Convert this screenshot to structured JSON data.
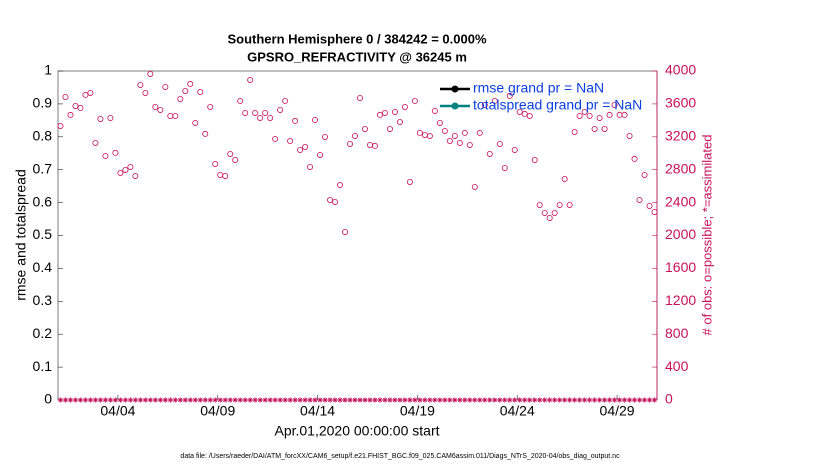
{
  "chart_data": {
    "type": "scatter",
    "title": "Southern Hemisphere 0 / 384242 = 0.000%",
    "subtitle": "GPSRO_REFRACTIVITY @ 36245 m",
    "x_label": "Apr.01,2020 00:00:00 start",
    "y_label": "rmse and totalspread",
    "y2_label": "# of obs: o=possible; *=assimilated",
    "footer": "data file: /Users/raeder/DAI/ATM_forcXX/CAM6_setup/f.e21.FHIST_BGC.f09_025.CAM6assim.011/Diags_NTrS_2020-04/obs_diag_output.nc",
    "legend": {
      "corner": "northeast",
      "entries": [
        {
          "label": "rmse grand pr = NaN",
          "color": "#000000"
        },
        {
          "label": "totalspread grand pr = NaN",
          "color": "#008080"
        }
      ]
    },
    "xlim": [
      1,
      31
    ],
    "xticks": [
      {
        "value": 4,
        "label": "04/04"
      },
      {
        "value": 9,
        "label": "04/09"
      },
      {
        "value": 14,
        "label": "04/14"
      },
      {
        "value": 19,
        "label": "04/19"
      },
      {
        "value": 24,
        "label": "04/24"
      },
      {
        "value": 29,
        "label": "04/29"
      }
    ],
    "ylim": [
      0,
      1
    ],
    "yticks": [
      0,
      0.1,
      0.2,
      0.3,
      0.4,
      0.5,
      0.6,
      0.7,
      0.8,
      0.9,
      1
    ],
    "y2lim": [
      0,
      4000
    ],
    "y2ticks": [
      0,
      400,
      800,
      1200,
      1600,
      2000,
      2400,
      2800,
      3200,
      3600,
      4000
    ],
    "x": [
      1.125,
      1.375,
      1.625,
      1.875,
      2.125,
      2.375,
      2.625,
      2.875,
      3.125,
      3.375,
      3.625,
      3.875,
      4.125,
      4.375,
      4.625,
      4.875,
      5.125,
      5.375,
      5.625,
      5.875,
      6.125,
      6.375,
      6.625,
      6.875,
      7.125,
      7.375,
      7.625,
      7.875,
      8.125,
      8.375,
      8.625,
      8.875,
      9.125,
      9.375,
      9.625,
      9.875,
      10.125,
      10.375,
      10.625,
      10.875,
      11.125,
      11.375,
      11.625,
      11.875,
      12.125,
      12.375,
      12.625,
      12.875,
      13.125,
      13.375,
      13.625,
      13.875,
      14.125,
      14.375,
      14.625,
      14.875,
      15.125,
      15.375,
      15.625,
      15.875,
      16.125,
      16.375,
      16.625,
      16.875,
      17.125,
      17.375,
      17.625,
      17.875,
      18.125,
      18.375,
      18.625,
      18.875,
      19.125,
      19.375,
      19.625,
      19.875,
      20.125,
      20.375,
      20.625,
      20.875,
      21.125,
      21.375,
      21.625,
      21.875,
      22.125,
      22.375,
      22.625,
      22.875,
      23.125,
      23.375,
      23.625,
      23.875,
      24.125,
      24.375,
      24.625,
      24.875,
      25.125,
      25.375,
      25.625,
      25.875,
      26.125,
      26.375,
      26.625,
      26.875,
      27.125,
      27.375,
      27.625,
      27.875,
      28.125,
      28.375,
      28.625,
      28.875,
      29.125,
      29.375,
      29.625,
      29.875,
      30.125,
      30.375,
      30.625,
      30.875
    ],
    "series": [
      {
        "marker": "o",
        "color": "#c8105a",
        "axis": "y2",
        "values": [
          3332,
          3684,
          3466,
          3575,
          3551,
          3709,
          3733,
          3125,
          3417,
          2967,
          3429,
          3004,
          2760,
          2797,
          2833,
          2724,
          3830,
          3733,
          3964,
          3563,
          3526,
          3806,
          3453,
          3453,
          3660,
          3757,
          3843,
          3368,
          3745,
          3235,
          3563,
          2870,
          2736,
          2724,
          2991,
          2918,
          3636,
          3490,
          3891,
          3490,
          3429,
          3490,
          3429,
          3174,
          3526,
          3636,
          3149,
          3393,
          3040,
          3076,
          2833,
          3405,
          2979,
          3198,
          2432,
          2408,
          2614,
          2043,
          3113,
          3210,
          3672,
          3295,
          3101,
          3089,
          3466,
          3490,
          3295,
          3502,
          3380,
          3563,
          2651,
          3636,
          3247,
          3222,
          3210,
          3514,
          3368,
          3271,
          3149,
          3210,
          3125,
          3247,
          3101,
          2590,
          3247,
          3587,
          2991,
          3636,
          3113,
          2821,
          3697,
          3040,
          3502,
          3478,
          3453,
          2918,
          2371,
          2274,
          2213,
          2274,
          2371,
          2687,
          2371,
          3259,
          3453,
          3502,
          3453,
          3295,
          3429,
          3295,
          3466,
          3587,
          3466,
          3466,
          3210,
          2931,
          2432,
          2736,
          2359,
          2286
        ]
      },
      {
        "marker": "*",
        "color": "#c8105a",
        "axis": "y2",
        "values": [
          0,
          0,
          0,
          0,
          0,
          0,
          0,
          0,
          0,
          0,
          0,
          0,
          0,
          0,
          0,
          0,
          0,
          0,
          0,
          0,
          0,
          0,
          0,
          0,
          0,
          0,
          0,
          0,
          0,
          0,
          0,
          0,
          0,
          0,
          0,
          0,
          0,
          0,
          0,
          0,
          0,
          0,
          0,
          0,
          0,
          0,
          0,
          0,
          0,
          0,
          0,
          0,
          0,
          0,
          0,
          0,
          0,
          0,
          0,
          0,
          0,
          0,
          0,
          0,
          0,
          0,
          0,
          0,
          0,
          0,
          0,
          0,
          0,
          0,
          0,
          0,
          0,
          0,
          0,
          0,
          0,
          0,
          0,
          0,
          0,
          0,
          0,
          0,
          0,
          0,
          0,
          0,
          0,
          0,
          0,
          0,
          0,
          0,
          0,
          0,
          0,
          0,
          0,
          0,
          0,
          0,
          0,
          0,
          0,
          0,
          0,
          0,
          0,
          0,
          0,
          0,
          0,
          0,
          0,
          0
        ]
      }
    ]
  }
}
